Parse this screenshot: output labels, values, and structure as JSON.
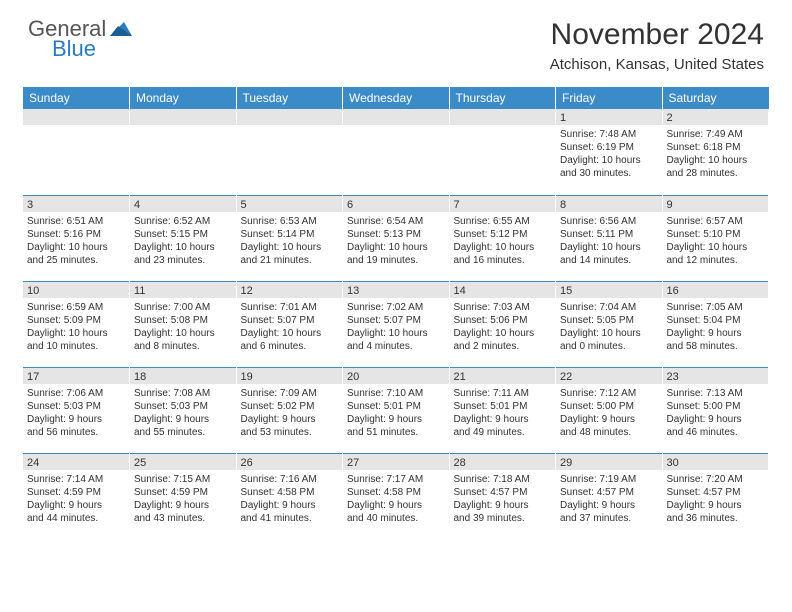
{
  "logo": {
    "word1": "General",
    "word2": "Blue"
  },
  "title": "November 2024",
  "location": "Atchison, Kansas, United States",
  "colors": {
    "header_bg": "#3b8bc8",
    "header_text": "#ffffff",
    "daynum_bg": "#e5e5e5",
    "row_border": "#3b8bc8",
    "text": "#333333",
    "logo_gray": "#555555",
    "logo_blue": "#2b7bbf"
  },
  "weekdays": [
    "Sunday",
    "Monday",
    "Tuesday",
    "Wednesday",
    "Thursday",
    "Friday",
    "Saturday"
  ],
  "weeks": [
    [
      {
        "day": "",
        "sunrise": "",
        "sunset": "",
        "daylight1": "",
        "daylight2": ""
      },
      {
        "day": "",
        "sunrise": "",
        "sunset": "",
        "daylight1": "",
        "daylight2": ""
      },
      {
        "day": "",
        "sunrise": "",
        "sunset": "",
        "daylight1": "",
        "daylight2": ""
      },
      {
        "day": "",
        "sunrise": "",
        "sunset": "",
        "daylight1": "",
        "daylight2": ""
      },
      {
        "day": "",
        "sunrise": "",
        "sunset": "",
        "daylight1": "",
        "daylight2": ""
      },
      {
        "day": "1",
        "sunrise": "Sunrise: 7:48 AM",
        "sunset": "Sunset: 6:19 PM",
        "daylight1": "Daylight: 10 hours",
        "daylight2": "and 30 minutes."
      },
      {
        "day": "2",
        "sunrise": "Sunrise: 7:49 AM",
        "sunset": "Sunset: 6:18 PM",
        "daylight1": "Daylight: 10 hours",
        "daylight2": "and 28 minutes."
      }
    ],
    [
      {
        "day": "3",
        "sunrise": "Sunrise: 6:51 AM",
        "sunset": "Sunset: 5:16 PM",
        "daylight1": "Daylight: 10 hours",
        "daylight2": "and 25 minutes."
      },
      {
        "day": "4",
        "sunrise": "Sunrise: 6:52 AM",
        "sunset": "Sunset: 5:15 PM",
        "daylight1": "Daylight: 10 hours",
        "daylight2": "and 23 minutes."
      },
      {
        "day": "5",
        "sunrise": "Sunrise: 6:53 AM",
        "sunset": "Sunset: 5:14 PM",
        "daylight1": "Daylight: 10 hours",
        "daylight2": "and 21 minutes."
      },
      {
        "day": "6",
        "sunrise": "Sunrise: 6:54 AM",
        "sunset": "Sunset: 5:13 PM",
        "daylight1": "Daylight: 10 hours",
        "daylight2": "and 19 minutes."
      },
      {
        "day": "7",
        "sunrise": "Sunrise: 6:55 AM",
        "sunset": "Sunset: 5:12 PM",
        "daylight1": "Daylight: 10 hours",
        "daylight2": "and 16 minutes."
      },
      {
        "day": "8",
        "sunrise": "Sunrise: 6:56 AM",
        "sunset": "Sunset: 5:11 PM",
        "daylight1": "Daylight: 10 hours",
        "daylight2": "and 14 minutes."
      },
      {
        "day": "9",
        "sunrise": "Sunrise: 6:57 AM",
        "sunset": "Sunset: 5:10 PM",
        "daylight1": "Daylight: 10 hours",
        "daylight2": "and 12 minutes."
      }
    ],
    [
      {
        "day": "10",
        "sunrise": "Sunrise: 6:59 AM",
        "sunset": "Sunset: 5:09 PM",
        "daylight1": "Daylight: 10 hours",
        "daylight2": "and 10 minutes."
      },
      {
        "day": "11",
        "sunrise": "Sunrise: 7:00 AM",
        "sunset": "Sunset: 5:08 PM",
        "daylight1": "Daylight: 10 hours",
        "daylight2": "and 8 minutes."
      },
      {
        "day": "12",
        "sunrise": "Sunrise: 7:01 AM",
        "sunset": "Sunset: 5:07 PM",
        "daylight1": "Daylight: 10 hours",
        "daylight2": "and 6 minutes."
      },
      {
        "day": "13",
        "sunrise": "Sunrise: 7:02 AM",
        "sunset": "Sunset: 5:07 PM",
        "daylight1": "Daylight: 10 hours",
        "daylight2": "and 4 minutes."
      },
      {
        "day": "14",
        "sunrise": "Sunrise: 7:03 AM",
        "sunset": "Sunset: 5:06 PM",
        "daylight1": "Daylight: 10 hours",
        "daylight2": "and 2 minutes."
      },
      {
        "day": "15",
        "sunrise": "Sunrise: 7:04 AM",
        "sunset": "Sunset: 5:05 PM",
        "daylight1": "Daylight: 10 hours",
        "daylight2": "and 0 minutes."
      },
      {
        "day": "16",
        "sunrise": "Sunrise: 7:05 AM",
        "sunset": "Sunset: 5:04 PM",
        "daylight1": "Daylight: 9 hours",
        "daylight2": "and 58 minutes."
      }
    ],
    [
      {
        "day": "17",
        "sunrise": "Sunrise: 7:06 AM",
        "sunset": "Sunset: 5:03 PM",
        "daylight1": "Daylight: 9 hours",
        "daylight2": "and 56 minutes."
      },
      {
        "day": "18",
        "sunrise": "Sunrise: 7:08 AM",
        "sunset": "Sunset: 5:03 PM",
        "daylight1": "Daylight: 9 hours",
        "daylight2": "and 55 minutes."
      },
      {
        "day": "19",
        "sunrise": "Sunrise: 7:09 AM",
        "sunset": "Sunset: 5:02 PM",
        "daylight1": "Daylight: 9 hours",
        "daylight2": "and 53 minutes."
      },
      {
        "day": "20",
        "sunrise": "Sunrise: 7:10 AM",
        "sunset": "Sunset: 5:01 PM",
        "daylight1": "Daylight: 9 hours",
        "daylight2": "and 51 minutes."
      },
      {
        "day": "21",
        "sunrise": "Sunrise: 7:11 AM",
        "sunset": "Sunset: 5:01 PM",
        "daylight1": "Daylight: 9 hours",
        "daylight2": "and 49 minutes."
      },
      {
        "day": "22",
        "sunrise": "Sunrise: 7:12 AM",
        "sunset": "Sunset: 5:00 PM",
        "daylight1": "Daylight: 9 hours",
        "daylight2": "and 48 minutes."
      },
      {
        "day": "23",
        "sunrise": "Sunrise: 7:13 AM",
        "sunset": "Sunset: 5:00 PM",
        "daylight1": "Daylight: 9 hours",
        "daylight2": "and 46 minutes."
      }
    ],
    [
      {
        "day": "24",
        "sunrise": "Sunrise: 7:14 AM",
        "sunset": "Sunset: 4:59 PM",
        "daylight1": "Daylight: 9 hours",
        "daylight2": "and 44 minutes."
      },
      {
        "day": "25",
        "sunrise": "Sunrise: 7:15 AM",
        "sunset": "Sunset: 4:59 PM",
        "daylight1": "Daylight: 9 hours",
        "daylight2": "and 43 minutes."
      },
      {
        "day": "26",
        "sunrise": "Sunrise: 7:16 AM",
        "sunset": "Sunset: 4:58 PM",
        "daylight1": "Daylight: 9 hours",
        "daylight2": "and 41 minutes."
      },
      {
        "day": "27",
        "sunrise": "Sunrise: 7:17 AM",
        "sunset": "Sunset: 4:58 PM",
        "daylight1": "Daylight: 9 hours",
        "daylight2": "and 40 minutes."
      },
      {
        "day": "28",
        "sunrise": "Sunrise: 7:18 AM",
        "sunset": "Sunset: 4:57 PM",
        "daylight1": "Daylight: 9 hours",
        "daylight2": "and 39 minutes."
      },
      {
        "day": "29",
        "sunrise": "Sunrise: 7:19 AM",
        "sunset": "Sunset: 4:57 PM",
        "daylight1": "Daylight: 9 hours",
        "daylight2": "and 37 minutes."
      },
      {
        "day": "30",
        "sunrise": "Sunrise: 7:20 AM",
        "sunset": "Sunset: 4:57 PM",
        "daylight1": "Daylight: 9 hours",
        "daylight2": "and 36 minutes."
      }
    ]
  ]
}
